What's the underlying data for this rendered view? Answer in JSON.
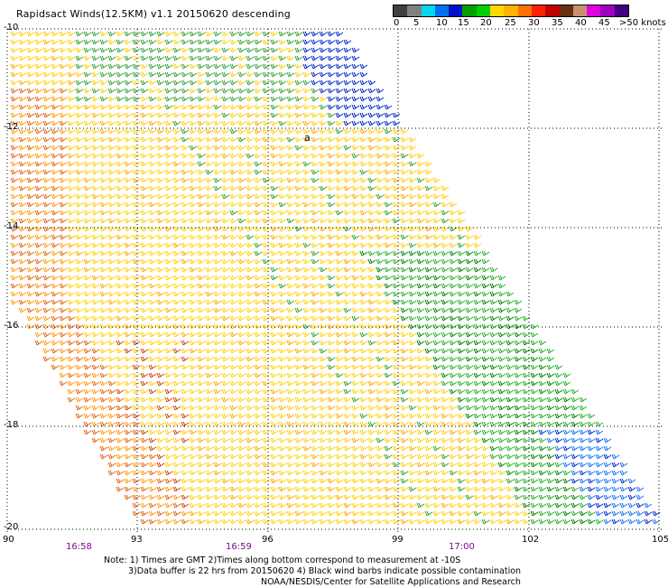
{
  "title": "Rapidsact Winds(12.5KM) v1.1 20150620 descending",
  "legend": {
    "colors": [
      "#404040",
      "#808080",
      "#00d8f0",
      "#0070f0",
      "#0010c8",
      "#00a000",
      "#00d000",
      "#ffd800",
      "#ffb000",
      "#ff7000",
      "#ff2000",
      "#c00000",
      "#6a3010",
      "#c89070",
      "#e000e0",
      "#a000c0",
      "#400080"
    ],
    "labels": [
      "0",
      "5",
      "10",
      "15",
      "20",
      "25",
      "30",
      "35",
      "40",
      "45",
      ">50 knots"
    ]
  },
  "map": {
    "lat_labels": [
      "-10",
      "-12",
      "-14",
      "-16",
      "-18",
      "-20"
    ],
    "lon_labels": [
      "90",
      "93",
      "96",
      "99",
      "102",
      "105"
    ],
    "time_labels": [
      "16:58",
      "16:59",
      "17:00"
    ],
    "marker": "a"
  },
  "notes": {
    "line1": "Note: 1) Times are GMT 2)Times along bottom correspond to measurement at -10S",
    "line2": "3)Data buffer is 22 hrs from 20150620 4) Black wind barbs indicate possible contamination",
    "line3": "NOAA/NESDIS/Center for Satellite Applications and Research"
  }
}
